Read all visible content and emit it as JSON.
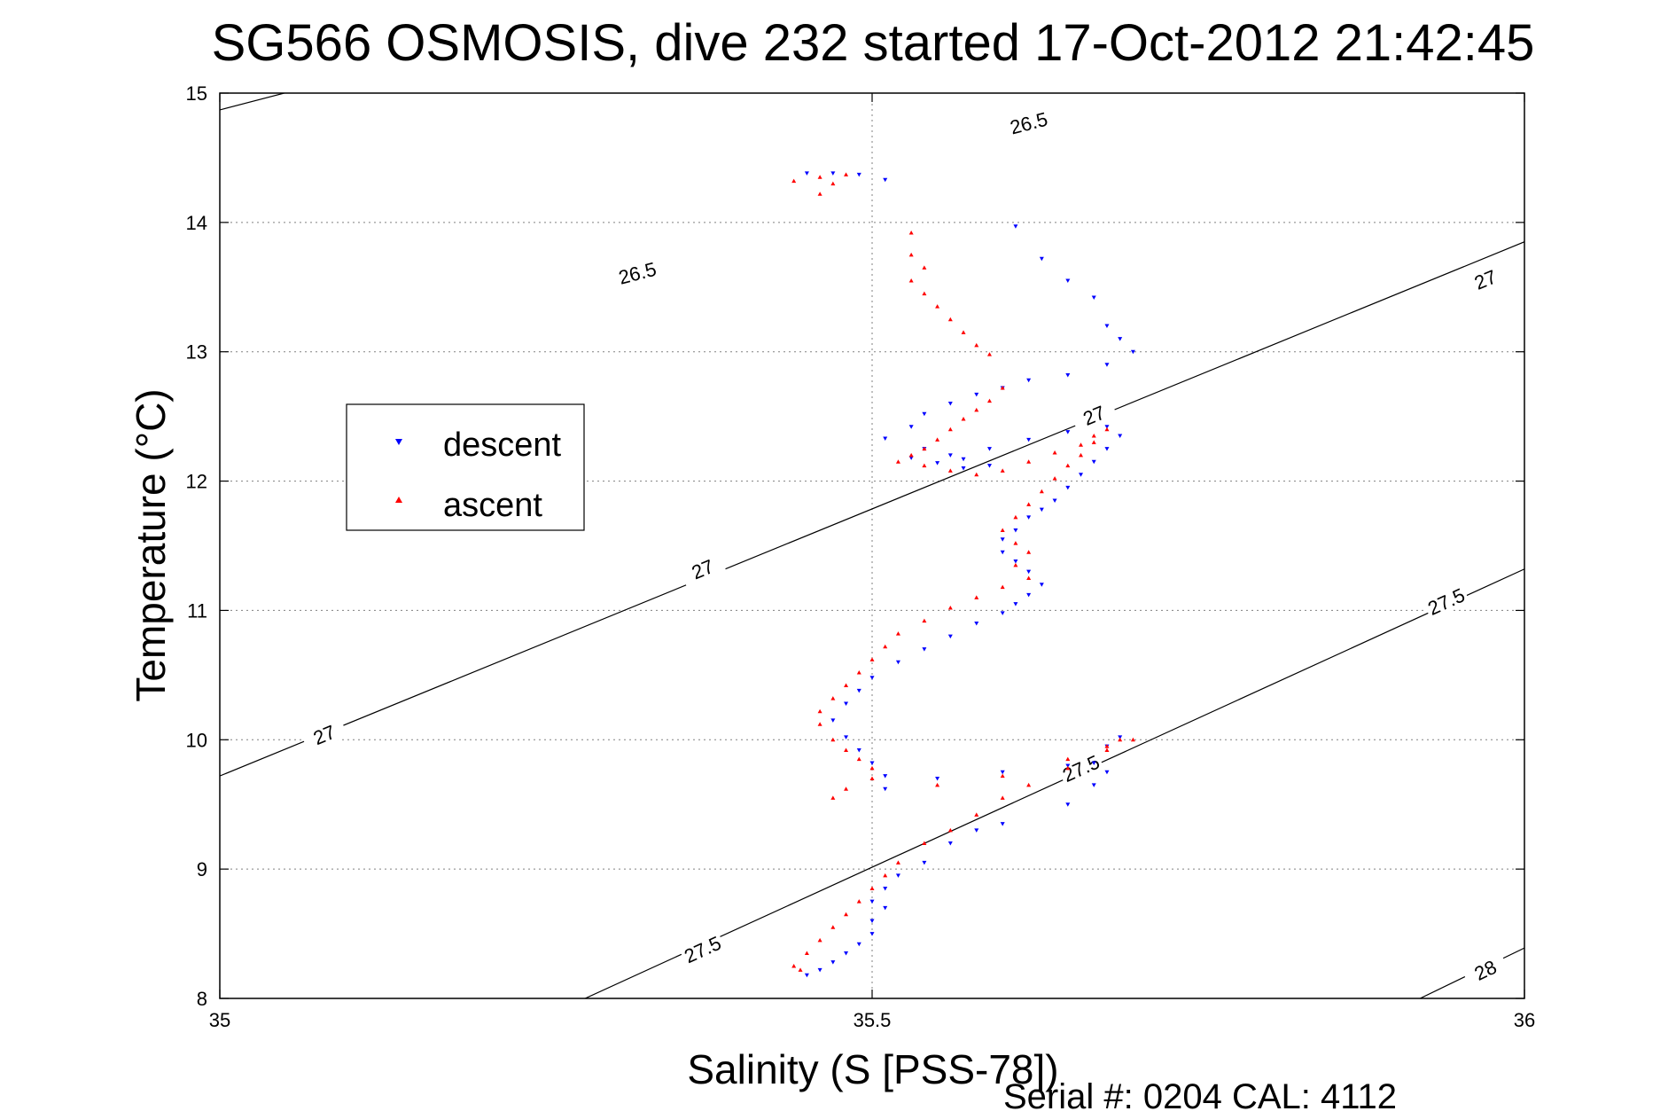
{
  "chart_data": {
    "type": "scatter",
    "title": "SG566 OSMOSIS, dive 232 started 17-Oct-2012 21:42:45",
    "xlabel": "Salinity (S [PSS-78])",
    "ylabel": "Temperature (°C)",
    "xlim": [
      35,
      36
    ],
    "ylim": [
      8,
      15
    ],
    "xticks": [
      35,
      35.5,
      36
    ],
    "xtick_labels": [
      "35",
      "35.5",
      "36"
    ],
    "yticks": [
      8,
      9,
      10,
      11,
      12,
      13,
      14,
      15
    ],
    "ytick_labels": [
      "8",
      "9",
      "10",
      "11",
      "12",
      "13",
      "14",
      "15"
    ],
    "grid": true,
    "legend_position": "middle-left",
    "footer": "Serial #: 0204  CAL: 4112",
    "colors": {
      "descent": "#0000ff",
      "ascent": "#ff0000",
      "contour": "#000000",
      "grid": "#808080"
    },
    "contours": [
      {
        "level": "26.5",
        "line": [
          [
            35.0,
            14.87
          ],
          [
            36.0,
            17.5
          ]
        ],
        "labels": [
          [
            35.32,
            13.61
          ],
          [
            35.62,
            14.77
          ]
        ]
      },
      {
        "level": "27",
        "line": [
          [
            35.0,
            9.72
          ],
          [
            36.0,
            13.85
          ]
        ],
        "labels": [
          [
            35.08,
            10.04
          ],
          [
            35.37,
            11.32
          ],
          [
            35.67,
            12.51
          ],
          [
            35.97,
            13.56
          ]
        ]
      },
      {
        "level": "27.5",
        "line": [
          [
            35.28,
            8.0
          ],
          [
            36.0,
            11.32
          ]
        ],
        "labels": [
          [
            35.37,
            8.38
          ],
          [
            35.66,
            9.78
          ],
          [
            35.94,
            11.07
          ]
        ]
      },
      {
        "level": "28",
        "line": [
          [
            35.92,
            8.0
          ],
          [
            36.0,
            8.39
          ]
        ],
        "labels": [
          [
            35.97,
            8.22
          ]
        ]
      }
    ],
    "series": [
      {
        "name": "descent",
        "marker": "triangle-down",
        "points": [
          [
            35.45,
            14.38
          ],
          [
            35.47,
            14.38
          ],
          [
            35.49,
            14.37
          ],
          [
            35.51,
            14.33
          ],
          [
            35.61,
            13.97
          ],
          [
            35.63,
            13.72
          ],
          [
            35.65,
            13.55
          ],
          [
            35.67,
            13.42
          ],
          [
            35.68,
            13.2
          ],
          [
            35.69,
            13.1
          ],
          [
            35.7,
            13.0
          ],
          [
            35.68,
            12.9
          ],
          [
            35.65,
            12.82
          ],
          [
            35.62,
            12.78
          ],
          [
            35.6,
            12.72
          ],
          [
            35.58,
            12.67
          ],
          [
            35.56,
            12.6
          ],
          [
            35.54,
            12.52
          ],
          [
            35.53,
            12.42
          ],
          [
            35.51,
            12.33
          ],
          [
            35.54,
            12.25
          ],
          [
            35.57,
            12.17
          ],
          [
            35.59,
            12.12
          ],
          [
            35.57,
            12.1
          ],
          [
            35.55,
            12.14
          ],
          [
            35.53,
            12.18
          ],
          [
            35.56,
            12.2
          ],
          [
            35.59,
            12.25
          ],
          [
            35.62,
            12.32
          ],
          [
            35.65,
            12.38
          ],
          [
            35.68,
            12.42
          ],
          [
            35.69,
            12.35
          ],
          [
            35.68,
            12.25
          ],
          [
            35.67,
            12.15
          ],
          [
            35.66,
            12.05
          ],
          [
            35.65,
            11.95
          ],
          [
            35.64,
            11.85
          ],
          [
            35.63,
            11.78
          ],
          [
            35.62,
            11.72
          ],
          [
            35.61,
            11.62
          ],
          [
            35.6,
            11.55
          ],
          [
            35.6,
            11.45
          ],
          [
            35.61,
            11.38
          ],
          [
            35.62,
            11.3
          ],
          [
            35.63,
            11.2
          ],
          [
            35.62,
            11.12
          ],
          [
            35.61,
            11.05
          ],
          [
            35.6,
            10.98
          ],
          [
            35.58,
            10.9
          ],
          [
            35.56,
            10.8
          ],
          [
            35.54,
            10.7
          ],
          [
            35.52,
            10.6
          ],
          [
            35.5,
            10.48
          ],
          [
            35.49,
            10.38
          ],
          [
            35.48,
            10.28
          ],
          [
            35.47,
            10.15
          ],
          [
            35.48,
            10.02
          ],
          [
            35.49,
            9.92
          ],
          [
            35.5,
            9.82
          ],
          [
            35.51,
            9.72
          ],
          [
            35.51,
            9.62
          ],
          [
            35.55,
            9.7
          ],
          [
            35.6,
            9.75
          ],
          [
            35.65,
            9.8
          ],
          [
            35.67,
            9.82
          ],
          [
            35.68,
            9.95
          ],
          [
            35.69,
            10.02
          ],
          [
            35.68,
            9.75
          ],
          [
            35.67,
            9.65
          ],
          [
            35.65,
            9.5
          ],
          [
            35.6,
            9.35
          ],
          [
            35.58,
            9.3
          ],
          [
            35.56,
            9.2
          ],
          [
            35.54,
            9.05
          ],
          [
            35.52,
            8.95
          ],
          [
            35.51,
            8.85
          ],
          [
            35.5,
            8.75
          ],
          [
            35.51,
            8.7
          ],
          [
            35.5,
            8.6
          ],
          [
            35.5,
            8.5
          ],
          [
            35.49,
            8.42
          ],
          [
            35.48,
            8.35
          ],
          [
            35.47,
            8.28
          ],
          [
            35.46,
            8.22
          ],
          [
            35.45,
            8.18
          ]
        ]
      },
      {
        "name": "ascent",
        "marker": "triangle-up",
        "points": [
          [
            35.44,
            14.32
          ],
          [
            35.46,
            14.35
          ],
          [
            35.48,
            14.37
          ],
          [
            35.47,
            14.3
          ],
          [
            35.46,
            14.22
          ],
          [
            35.53,
            13.92
          ],
          [
            35.53,
            13.75
          ],
          [
            35.54,
            13.65
          ],
          [
            35.53,
            13.55
          ],
          [
            35.54,
            13.45
          ],
          [
            35.55,
            13.35
          ],
          [
            35.56,
            13.25
          ],
          [
            35.57,
            13.15
          ],
          [
            35.58,
            13.05
          ],
          [
            35.59,
            12.98
          ],
          [
            35.6,
            12.72
          ],
          [
            35.59,
            12.62
          ],
          [
            35.58,
            12.55
          ],
          [
            35.57,
            12.48
          ],
          [
            35.56,
            12.4
          ],
          [
            35.55,
            12.32
          ],
          [
            35.54,
            12.25
          ],
          [
            35.53,
            12.2
          ],
          [
            35.52,
            12.15
          ],
          [
            35.54,
            12.12
          ],
          [
            35.56,
            12.08
          ],
          [
            35.58,
            12.05
          ],
          [
            35.6,
            12.08
          ],
          [
            35.62,
            12.15
          ],
          [
            35.64,
            12.22
          ],
          [
            35.66,
            12.28
          ],
          [
            35.67,
            12.35
          ],
          [
            35.68,
            12.4
          ],
          [
            35.67,
            12.3
          ],
          [
            35.66,
            12.2
          ],
          [
            35.65,
            12.12
          ],
          [
            35.64,
            12.02
          ],
          [
            35.63,
            11.92
          ],
          [
            35.62,
            11.82
          ],
          [
            35.61,
            11.72
          ],
          [
            35.6,
            11.62
          ],
          [
            35.61,
            11.52
          ],
          [
            35.62,
            11.45
          ],
          [
            35.61,
            11.35
          ],
          [
            35.62,
            11.25
          ],
          [
            35.6,
            11.18
          ],
          [
            35.58,
            11.1
          ],
          [
            35.56,
            11.02
          ],
          [
            35.54,
            10.92
          ],
          [
            35.52,
            10.82
          ],
          [
            35.51,
            10.72
          ],
          [
            35.5,
            10.62
          ],
          [
            35.49,
            10.52
          ],
          [
            35.48,
            10.42
          ],
          [
            35.47,
            10.32
          ],
          [
            35.46,
            10.22
          ],
          [
            35.46,
            10.12
          ],
          [
            35.47,
            10.0
          ],
          [
            35.48,
            9.92
          ],
          [
            35.49,
            9.85
          ],
          [
            35.5,
            9.78
          ],
          [
            35.5,
            9.7
          ],
          [
            35.48,
            9.62
          ],
          [
            35.47,
            9.55
          ],
          [
            35.55,
            9.65
          ],
          [
            35.6,
            9.72
          ],
          [
            35.65,
            9.85
          ],
          [
            35.68,
            9.95
          ],
          [
            35.69,
            10.0
          ],
          [
            35.7,
            10.0
          ],
          [
            35.68,
            9.92
          ],
          [
            35.65,
            9.78
          ],
          [
            35.62,
            9.65
          ],
          [
            35.6,
            9.55
          ],
          [
            35.58,
            9.42
          ],
          [
            35.56,
            9.3
          ],
          [
            35.54,
            9.2
          ],
          [
            35.52,
            9.05
          ],
          [
            35.51,
            8.95
          ],
          [
            35.5,
            8.85
          ],
          [
            35.49,
            8.75
          ],
          [
            35.48,
            8.65
          ],
          [
            35.47,
            8.55
          ],
          [
            35.46,
            8.45
          ],
          [
            35.45,
            8.35
          ],
          [
            35.44,
            8.25
          ],
          [
            35.445,
            8.22
          ]
        ]
      }
    ]
  }
}
